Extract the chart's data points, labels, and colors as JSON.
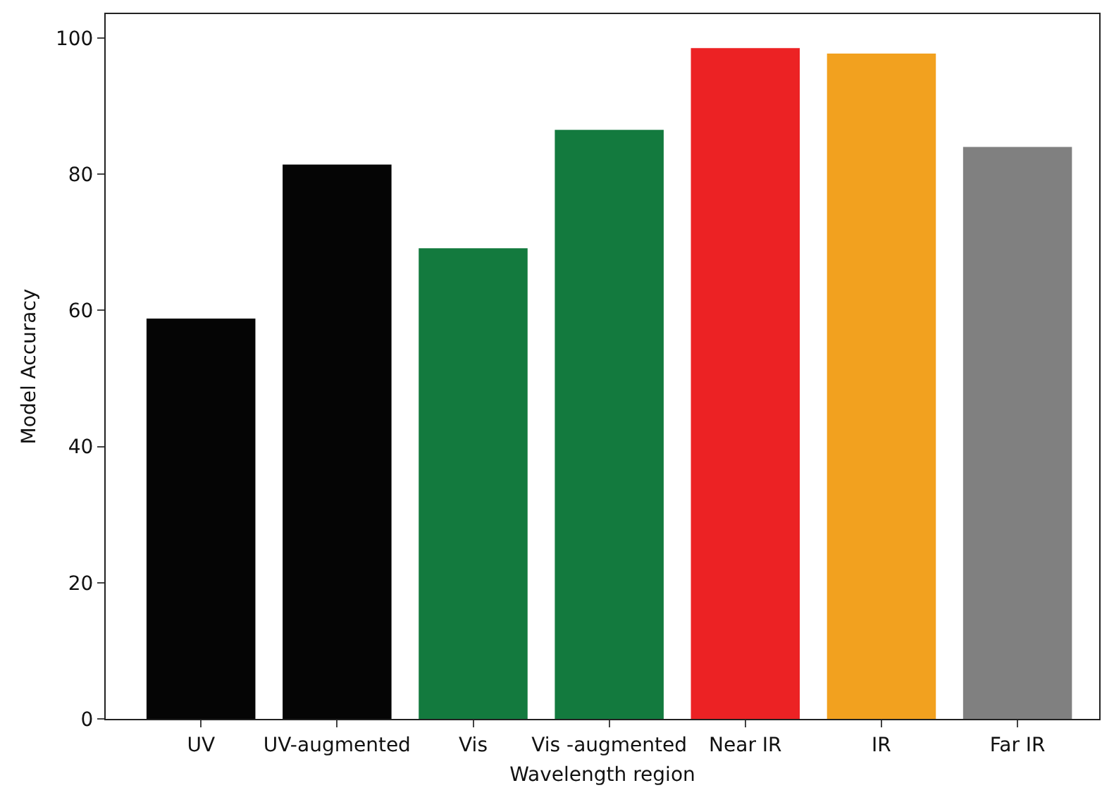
{
  "chart_data": {
    "type": "bar",
    "xlabel": "Wavelength region",
    "ylabel": "Model Accuracy",
    "categories": [
      "UV",
      "UV-augmented",
      "Vis",
      "Vis -augmented",
      "Near IR",
      "IR",
      "Far IR"
    ],
    "values": [
      58.8,
      81.4,
      69.1,
      86.5,
      98.5,
      97.7,
      84.0
    ],
    "colors": [
      "#050505",
      "#050505",
      "#137a3e",
      "#137a3e",
      "#ec2224",
      "#f2a11f",
      "#808080"
    ],
    "ylim": [
      0,
      103.5
    ],
    "yticks": [
      0,
      20,
      40,
      60,
      80,
      100
    ]
  }
}
